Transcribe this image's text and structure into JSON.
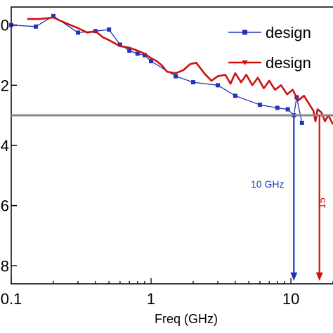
{
  "chart_data": {
    "type": "line",
    "title": "",
    "xlabel": "Freq (GHz)",
    "ylabel": "",
    "x_scale": "log",
    "xlim": [
      0.1,
      20
    ],
    "ylim": [
      -8.6,
      0.6
    ],
    "x_ticks": [
      {
        "value": 0.1,
        "label": "0.1"
      },
      {
        "value": 1,
        "label": "1"
      },
      {
        "value": 10,
        "label": "10"
      }
    ],
    "y_ticks": [
      {
        "value": 0,
        "label": "0"
      },
      {
        "value": -2,
        "label": "2"
      },
      {
        "value": -4,
        "label": "4"
      },
      {
        "value": -6,
        "label": "6"
      },
      {
        "value": -8,
        "label": "8"
      }
    ],
    "grid": false,
    "legend_position": "top-right",
    "series": [
      {
        "name": "design",
        "color": "#2233bb",
        "marker": "square",
        "points": [
          [
            0.1,
            0.0
          ],
          [
            0.15,
            -0.05
          ],
          [
            0.2,
            0.3
          ],
          [
            0.3,
            -0.25
          ],
          [
            0.4,
            -0.2
          ],
          [
            0.5,
            -0.15
          ],
          [
            0.6,
            -0.65
          ],
          [
            0.7,
            -0.85
          ],
          [
            0.8,
            -0.95
          ],
          [
            0.9,
            -1.0
          ],
          [
            1.0,
            -1.2
          ],
          [
            1.5,
            -1.7
          ],
          [
            2.0,
            -1.9
          ],
          [
            3.0,
            -2.0
          ],
          [
            4.0,
            -2.35
          ],
          [
            6.0,
            -2.65
          ],
          [
            8.0,
            -2.75
          ],
          [
            9.5,
            -2.8
          ],
          [
            10.5,
            -3.0
          ],
          [
            11.0,
            -2.4
          ],
          [
            12.0,
            -3.25
          ]
        ]
      },
      {
        "name": "design",
        "color": "#cc1111",
        "marker": "triangle",
        "points": [
          [
            0.13,
            0.2
          ],
          [
            0.16,
            0.2
          ],
          [
            0.2,
            0.25
          ],
          [
            0.25,
            0.05
          ],
          [
            0.3,
            -0.1
          ],
          [
            0.35,
            -0.25
          ],
          [
            0.4,
            -0.2
          ],
          [
            0.45,
            -0.4
          ],
          [
            0.5,
            -0.5
          ],
          [
            0.6,
            -0.7
          ],
          [
            0.7,
            -0.75
          ],
          [
            0.8,
            -0.85
          ],
          [
            0.9,
            -0.95
          ],
          [
            1.0,
            -1.1
          ],
          [
            1.1,
            -1.2
          ],
          [
            1.2,
            -1.35
          ],
          [
            1.3,
            -1.55
          ],
          [
            1.5,
            -1.6
          ],
          [
            1.7,
            -1.5
          ],
          [
            1.9,
            -1.3
          ],
          [
            2.1,
            -1.25
          ],
          [
            2.4,
            -1.6
          ],
          [
            2.7,
            -1.85
          ],
          [
            3.0,
            -1.7
          ],
          [
            3.4,
            -1.65
          ],
          [
            3.7,
            -1.95
          ],
          [
            4.0,
            -1.6
          ],
          [
            4.4,
            -1.9
          ],
          [
            4.8,
            -1.65
          ],
          [
            5.3,
            -2.0
          ],
          [
            5.8,
            -1.75
          ],
          [
            6.4,
            -2.1
          ],
          [
            7.0,
            -1.85
          ],
          [
            7.7,
            -2.15
          ],
          [
            8.5,
            -2.0
          ],
          [
            9.4,
            -2.3
          ],
          [
            10.3,
            -2.15
          ],
          [
            11.3,
            -2.5
          ],
          [
            12.4,
            -2.35
          ],
          [
            13.6,
            -2.65
          ],
          [
            14.5,
            -2.85
          ],
          [
            15.0,
            -3.2
          ],
          [
            15.5,
            -2.8
          ],
          [
            16.5,
            -2.9
          ],
          [
            17.5,
            -3.2
          ],
          [
            18.5,
            -3.0
          ],
          [
            19.5,
            -3.2
          ],
          [
            20.0,
            -3.3
          ]
        ]
      }
    ],
    "annotations": {
      "threshold_line": {
        "y": -3.0,
        "color": "#888888"
      },
      "arrows": [
        {
          "x": 10.5,
          "y_from": -3.0,
          "y_to": -8.5,
          "color": "#2233bb"
        },
        {
          "x": 16.0,
          "y_from": -3.0,
          "y_to": -8.5,
          "color": "#cc1111"
        }
      ],
      "labels": [
        {
          "text": "10 GHz",
          "x": 6.8,
          "y": -5.4,
          "color": "#2233bb"
        },
        {
          "text": "15",
          "x": 17.6,
          "y": -6.1,
          "color": "#cc1111"
        }
      ]
    }
  }
}
